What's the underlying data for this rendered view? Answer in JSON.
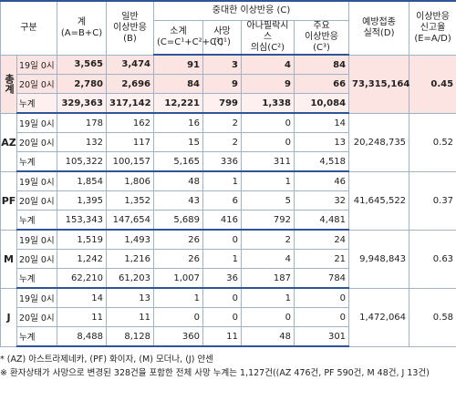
{
  "header": {
    "category": "구분",
    "total": "계\n(A=B+C)",
    "general": "일반\n이상반응\n(B)",
    "serious": "중대한 이상반응 (C)",
    "subtotal": "소계\n(C=C¹+C²+C³)",
    "death": "사망\n(C¹)",
    "anaphylaxis": "아나필락시스\n의심(C²)",
    "major": "주요\n이상반응(C³)",
    "doses": "예방접종\n실적(D)",
    "rate": "이상반응\n신고율\n(E=A/D)"
  },
  "groups": [
    {
      "label": "총계",
      "doses": "73,315,164",
      "rate": "0.45",
      "rows": [
        {
          "label": "19일 0시",
          "cells": [
            "3,565",
            "3,474",
            "91",
            "3",
            "4",
            "84"
          ]
        },
        {
          "label": "20일 0시",
          "cells": [
            "2,780",
            "2,696",
            "84",
            "9",
            "9",
            "66"
          ]
        },
        {
          "label": "누계",
          "cells": [
            "329,363",
            "317,142",
            "12,221",
            "799",
            "1,338",
            "10,084"
          ]
        }
      ]
    },
    {
      "label": "AZ",
      "doses": "20,248,735",
      "rate": "0.52",
      "rows": [
        {
          "label": "19일 0시",
          "cells": [
            "178",
            "162",
            "16",
            "2",
            "0",
            "14"
          ]
        },
        {
          "label": "20일 0시",
          "cells": [
            "132",
            "117",
            "15",
            "2",
            "0",
            "13"
          ]
        },
        {
          "label": "누계",
          "cells": [
            "105,322",
            "100,157",
            "5,165",
            "336",
            "311",
            "4,518"
          ]
        }
      ]
    },
    {
      "label": "PF",
      "doses": "41,645,522",
      "rate": "0.37",
      "rows": [
        {
          "label": "19일 0시",
          "cells": [
            "1,854",
            "1,806",
            "48",
            "1",
            "1",
            "46"
          ]
        },
        {
          "label": "20일 0시",
          "cells": [
            "1,395",
            "1,352",
            "43",
            "6",
            "5",
            "32"
          ]
        },
        {
          "label": "누계",
          "cells": [
            "153,343",
            "147,654",
            "5,689",
            "416",
            "792",
            "4,481"
          ]
        }
      ]
    },
    {
      "label": "M",
      "doses": "9,948,843",
      "rate": "0.63",
      "rows": [
        {
          "label": "19일 0시",
          "cells": [
            "1,519",
            "1,493",
            "26",
            "0",
            "2",
            "24"
          ]
        },
        {
          "label": "20일 0시",
          "cells": [
            "1,242",
            "1,216",
            "26",
            "1",
            "4",
            "21"
          ]
        },
        {
          "label": "누계",
          "cells": [
            "62,210",
            "61,203",
            "1,007",
            "36",
            "187",
            "784"
          ]
        }
      ]
    },
    {
      "label": "J",
      "doses": "1,472,064",
      "rate": "0.58",
      "rows": [
        {
          "label": "19일 0시",
          "cells": [
            "14",
            "13",
            "1",
            "0",
            "1",
            "0"
          ]
        },
        {
          "label": "20일 0시",
          "cells": [
            "11",
            "11",
            "0",
            "0",
            "0",
            "0"
          ]
        },
        {
          "label": "누계",
          "cells": [
            "8,488",
            "8,128",
            "360",
            "11",
            "48",
            "301"
          ]
        }
      ]
    }
  ],
  "footnotes": [
    "* (AZ) 아스트라제네카, (PF) 화이자, (M) 모더나, (J) 얀센",
    "※ 환자상태가 사망으로 변경된 328건을 포함한 전체 사망 누계는 1,127건((AZ 476건, PF 590건, M 48건, J 13건)"
  ]
}
